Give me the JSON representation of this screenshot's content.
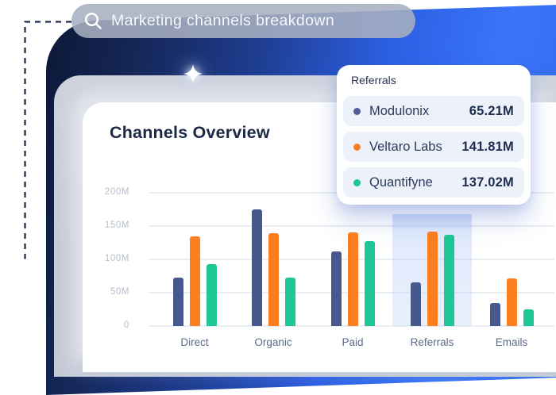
{
  "search": {
    "query": "Marketing channels breakdown"
  },
  "card": {
    "title": "Channels Overview"
  },
  "tooltip": {
    "title": "Referrals",
    "rows": [
      {
        "name": "Modulonix",
        "value": "65.21M",
        "color": "#4c5c9c"
      },
      {
        "name": "Veltaro Labs",
        "value": "141.81M",
        "color": "#fd7e1e"
      },
      {
        "name": "Quantifyne",
        "value": "137.02M",
        "color": "#1ec795"
      }
    ]
  },
  "chart_data": {
    "type": "bar",
    "title": "Channels Overview",
    "categories": [
      "Direct",
      "Organic",
      "Paid",
      "Referrals",
      "Emails"
    ],
    "series": [
      {
        "name": "Modulonix",
        "color": "#47588e",
        "values": [
          73,
          175,
          112,
          65.21,
          34
        ]
      },
      {
        "name": "Veltaro Labs",
        "color": "#fd7e1e",
        "values": [
          134,
          139,
          141,
          141.81,
          71
        ]
      },
      {
        "name": "Quantifyne",
        "color": "#1ec795",
        "values": [
          93,
          73,
          127,
          137.02,
          25
        ]
      }
    ],
    "yticks": [
      {
        "label": "200M",
        "value": 200
      },
      {
        "label": "150M",
        "value": 150
      },
      {
        "label": "100M",
        "value": 100
      },
      {
        "label": "50M",
        "value": 50
      },
      {
        "label": "0",
        "value": 0
      }
    ],
    "ylim": [
      0,
      210
    ],
    "xlabel": "",
    "ylabel": "",
    "grid": true,
    "legend": false,
    "highlighted_category": "Referrals",
    "highlight_band_color": "#dce7fc"
  }
}
